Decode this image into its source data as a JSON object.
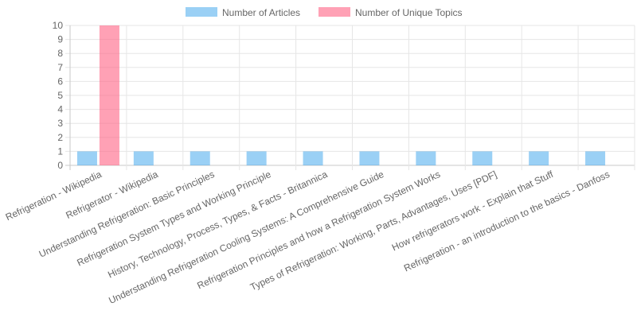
{
  "chart_data": {
    "type": "bar",
    "categories": [
      "Refrigeration - Wikipedia",
      "Refrigerator - Wikipedia",
      "Understanding Refrigeration: Basic Principles",
      "Refrigeration System Types and Working Principle",
      "History, Technology, Process, Types, & Facts - Britannica",
      "Understanding Refrigeration Cooling Systems: A Comprehensive Guide",
      "Refrigeration Principles and how a Refrigeration System Works",
      "Types of Refrigeration: Working, Parts, Advantages, Uses [PDF]",
      "How refrigerators work - Explain that Stuff",
      "Refrigeration - an introduction to the basics - Danfoss"
    ],
    "series": [
      {
        "name": "Number of Articles",
        "values": [
          1,
          1,
          1,
          1,
          1,
          1,
          1,
          1,
          1,
          1
        ],
        "color": "#36a2eb",
        "fill": "rgba(54,162,235,0.5)"
      },
      {
        "name": "Number of Unique Topics",
        "values": [
          10,
          0,
          0,
          0,
          0,
          0,
          0,
          0,
          0,
          0
        ],
        "color": "#ff6384",
        "fill": "rgba(255,99,132,0.6)"
      }
    ],
    "ylim": [
      0,
      10
    ],
    "yticks": [
      "0",
      "1",
      "2",
      "3",
      "4",
      "5",
      "6",
      "7",
      "8",
      "9",
      "10"
    ],
    "grid": true,
    "legend_position": "top-center"
  }
}
